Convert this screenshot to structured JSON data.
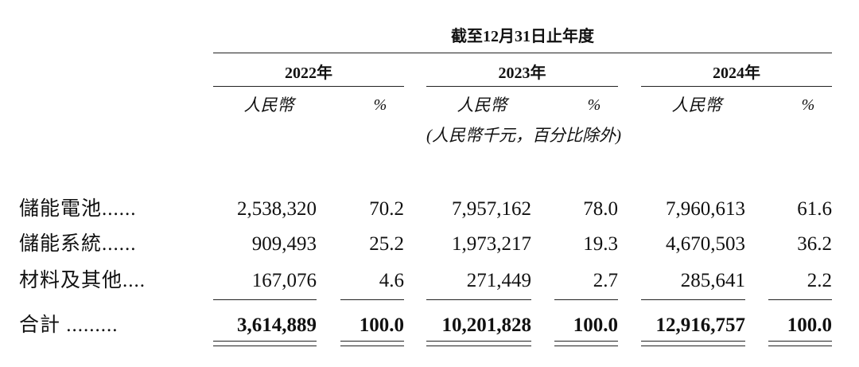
{
  "header": {
    "period": "截至12月31日止年度",
    "years": [
      "2022年",
      "2023年",
      "2024年"
    ],
    "subheaders": {
      "currency": "人民幣",
      "percent": "%"
    },
    "unit_note": "(人民幣千元，百分比除外)"
  },
  "table": {
    "rows": [
      {
        "label": "儲能電池......",
        "cells": [
          "2,538,320",
          "70.2",
          "7,957,162",
          "78.0",
          "7,960,613",
          "61.6"
        ]
      },
      {
        "label": "儲能系統......",
        "cells": [
          "909,493",
          "25.2",
          "1,973,217",
          "19.3",
          "4,670,503",
          "36.2"
        ]
      },
      {
        "label": "材料及其他....",
        "cells": [
          "167,076",
          "4.6",
          "271,449",
          "2.7",
          "285,641",
          "2.2"
        ]
      },
      {
        "label": "合計 .........",
        "cells": [
          "3,614,889",
          "100.0",
          "10,201,828",
          "100.0",
          "12,916,757",
          "100.0"
        ]
      }
    ]
  }
}
